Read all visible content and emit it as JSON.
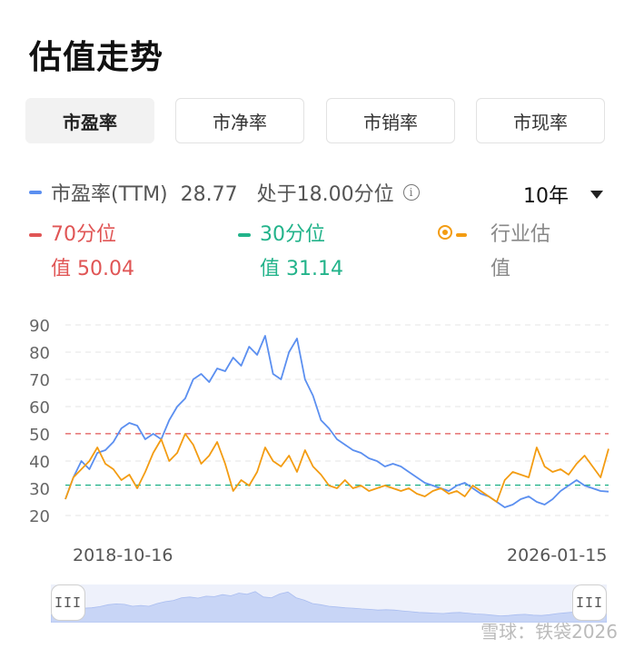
{
  "page": {
    "title": "估值走势"
  },
  "tabs": [
    {
      "label": "市盈率",
      "active": true
    },
    {
      "label": "市净率",
      "active": false
    },
    {
      "label": "市销率",
      "active": false
    },
    {
      "label": "市现率",
      "active": false
    }
  ],
  "legend": {
    "main": "市盈率(TTM)  28.77   处于18.00分位",
    "p70": "70分位\n值 50.04",
    "p30": "30分位\n值 31.14",
    "industry": "行业估\n值"
  },
  "period_select": "10年",
  "colors": {
    "pe": "#5b8ff0",
    "industry": "#f39c12",
    "p70": "#e05555",
    "p30": "#22b38a",
    "nav": "#c8d5f6"
  },
  "icons": {
    "info": "info-icon",
    "dropdown": "caret-down-icon",
    "industry_marker": "ring-dot-icon",
    "handles": "drag-handle-icon"
  },
  "chart_data": {
    "type": "line",
    "x_start_label": "2018-10-16",
    "x_end_label": "2026-01-15",
    "ylim": [
      20,
      90
    ],
    "y_ticks": [
      "90",
      "80",
      "70",
      "60",
      "50",
      "40",
      "30",
      "20"
    ],
    "reference_lines": [
      {
        "name": "70分位值",
        "value": 50.04
      },
      {
        "name": "30分位值",
        "value": 31.14
      }
    ],
    "series": [
      {
        "name": "市盈率(TTM)",
        "values": [
          26,
          34,
          40,
          37,
          43,
          44,
          47,
          52,
          54,
          53,
          48,
          50,
          48,
          55,
          60,
          63,
          70,
          72,
          69,
          74,
          73,
          78,
          75,
          82,
          79,
          86,
          72,
          70,
          80,
          85,
          70,
          64,
          55,
          52,
          48,
          46,
          44,
          43,
          41,
          40,
          38,
          39,
          38,
          36,
          34,
          32,
          31,
          30,
          29,
          31,
          32,
          30,
          28,
          27,
          25,
          23,
          24,
          26,
          27,
          25,
          24,
          26,
          29,
          31,
          33,
          31,
          30,
          29,
          28.77
        ]
      },
      {
        "name": "行业估值",
        "values": [
          26,
          34,
          37,
          40,
          45,
          39,
          37,
          33,
          35,
          30,
          36,
          43,
          48,
          40,
          43,
          50,
          46,
          39,
          42,
          47,
          39,
          29,
          33,
          31,
          36,
          45,
          40,
          38,
          42,
          36,
          44,
          38,
          35,
          31,
          30,
          33,
          30,
          31,
          29,
          30,
          31,
          30,
          29,
          30,
          28,
          27,
          29,
          30,
          28,
          29,
          27,
          31,
          29,
          27,
          25,
          33,
          36,
          35,
          34,
          45,
          38,
          36,
          37,
          35,
          39,
          42,
          38,
          34,
          44.5
        ]
      }
    ]
  },
  "watermark": "雪球：铁袋2026"
}
